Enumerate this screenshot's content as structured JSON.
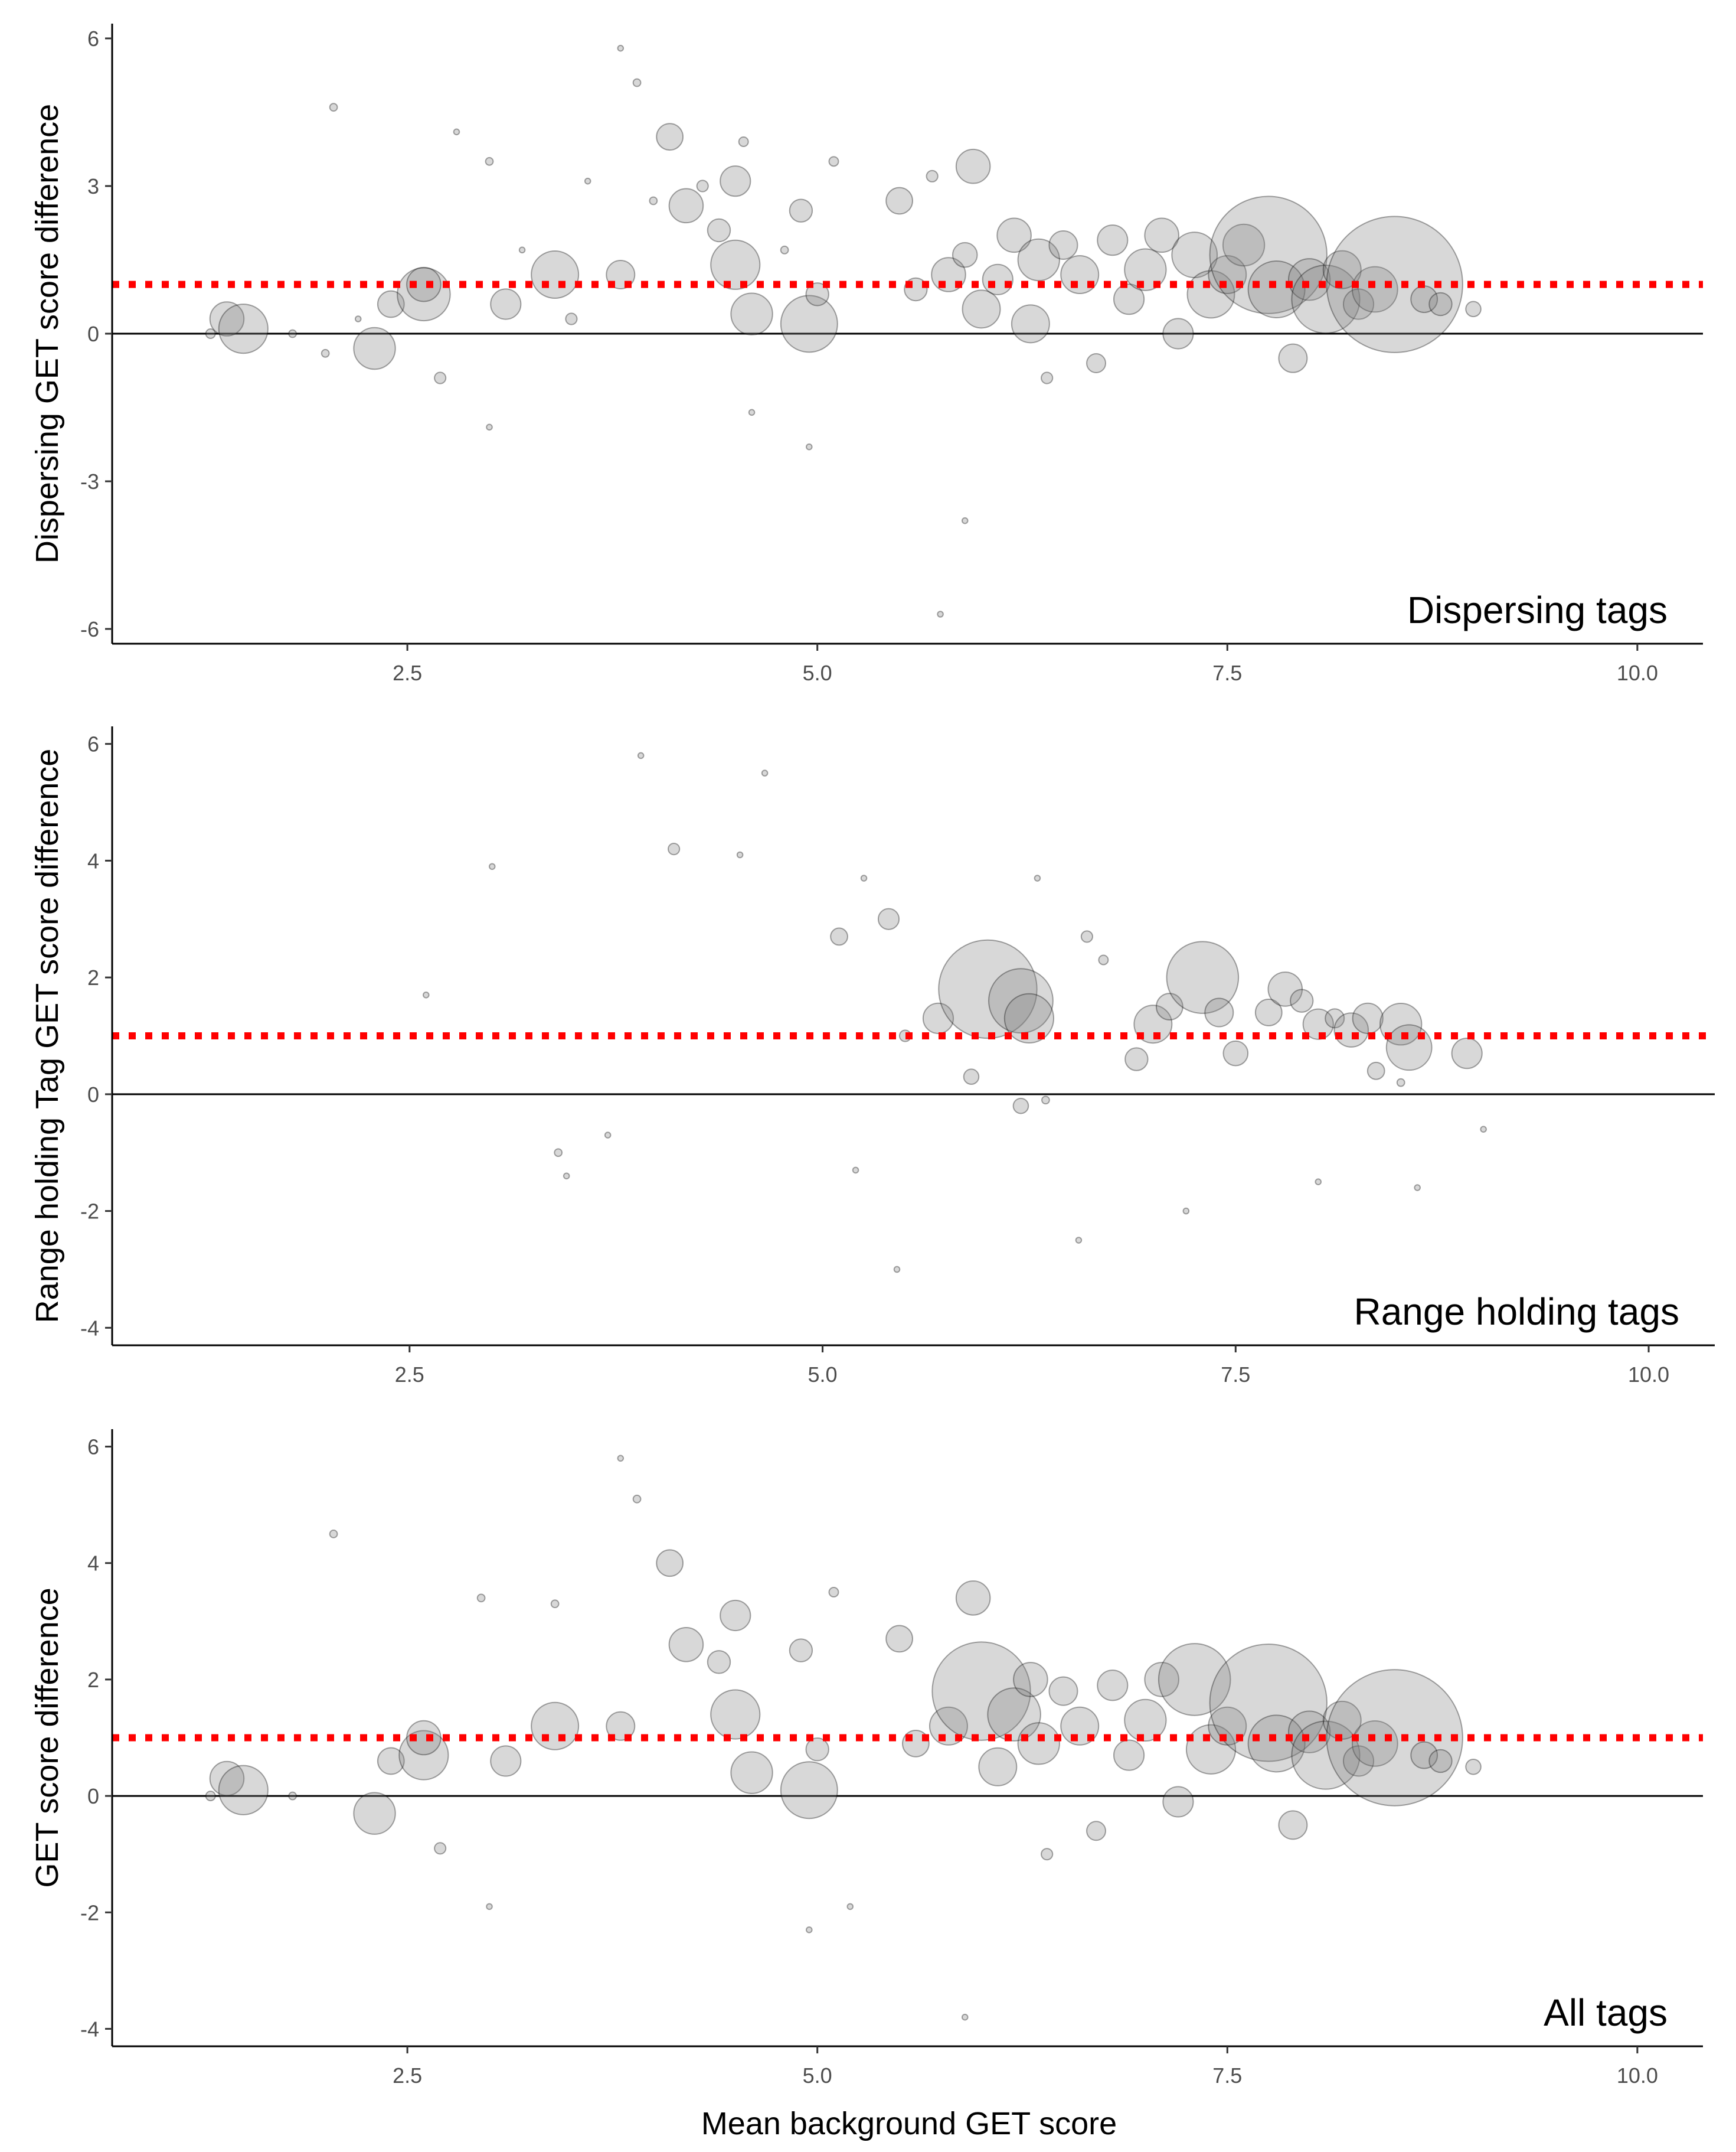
{
  "figure": {
    "x_axis_title": "Mean background GET score",
    "x_ticks": [
      "2.5",
      "5.0",
      "7.5",
      "10.0"
    ],
    "colors": {
      "bubble_fill": "#7f7f7f",
      "bubble_stroke": "#000000",
      "reference_line": "#ff0000",
      "zero_line": "#000000"
    }
  },
  "chart_data": [
    {
      "type": "scatter",
      "panel_label": "Dispersing tags",
      "ylabel": "Dispersing GET score difference",
      "xlabel": "",
      "xlim": [
        0.7,
        10.4
      ],
      "ylim": [
        -6.3,
        6.3
      ],
      "x_ticks": [
        2.5,
        5.0,
        7.5,
        10.0
      ],
      "y_ticks": [
        -6,
        -3,
        0,
        3,
        6
      ],
      "y_tick_labels": [
        "-6",
        "-3",
        "0",
        "3",
        "6"
      ],
      "reference_lines": [
        {
          "y": 1,
          "style": "dotted",
          "color": "#ff0000"
        },
        {
          "y": 0,
          "style": "solid",
          "color": "#000000"
        }
      ],
      "grid": false,
      "points": [
        {
          "x": 1.3,
          "y": 0.0,
          "s": 0.5
        },
        {
          "x": 1.4,
          "y": 0.3,
          "s": 1.8
        },
        {
          "x": 1.5,
          "y": 0.1,
          "s": 2.6
        },
        {
          "x": 1.8,
          "y": 0.0,
          "s": 0.4
        },
        {
          "x": 2.0,
          "y": -0.4,
          "s": 0.4
        },
        {
          "x": 2.05,
          "y": 4.6,
          "s": 0.4
        },
        {
          "x": 2.2,
          "y": 0.3,
          "s": 0.3
        },
        {
          "x": 2.3,
          "y": -0.3,
          "s": 2.2
        },
        {
          "x": 2.4,
          "y": 0.6,
          "s": 1.4
        },
        {
          "x": 2.6,
          "y": 0.8,
          "s": 2.8
        },
        {
          "x": 2.6,
          "y": 1.0,
          "s": 1.8
        },
        {
          "x": 2.7,
          "y": -0.9,
          "s": 0.6
        },
        {
          "x": 2.8,
          "y": 4.1,
          "s": 0.3
        },
        {
          "x": 3.0,
          "y": 3.5,
          "s": 0.4
        },
        {
          "x": 3.1,
          "y": 0.6,
          "s": 1.6
        },
        {
          "x": 3.2,
          "y": 1.7,
          "s": 0.3
        },
        {
          "x": 3.4,
          "y": 1.2,
          "s": 2.5
        },
        {
          "x": 3.5,
          "y": 0.3,
          "s": 0.6
        },
        {
          "x": 3.6,
          "y": 3.1,
          "s": 0.3
        },
        {
          "x": 3.8,
          "y": 1.2,
          "s": 1.5
        },
        {
          "x": 3.9,
          "y": 5.1,
          "s": 0.4
        },
        {
          "x": 4.0,
          "y": 2.7,
          "s": 0.4
        },
        {
          "x": 4.1,
          "y": 4.0,
          "s": 1.4
        },
        {
          "x": 4.2,
          "y": 2.6,
          "s": 1.8
        },
        {
          "x": 4.3,
          "y": 3.0,
          "s": 0.6
        },
        {
          "x": 4.4,
          "y": 2.1,
          "s": 1.2
        },
        {
          "x": 4.5,
          "y": 1.4,
          "s": 2.6
        },
        {
          "x": 4.5,
          "y": 3.1,
          "s": 1.6
        },
        {
          "x": 4.6,
          "y": 0.4,
          "s": 2.2
        },
        {
          "x": 4.55,
          "y": 3.9,
          "s": 0.5
        },
        {
          "x": 4.8,
          "y": 1.7,
          "s": 0.4
        },
        {
          "x": 4.9,
          "y": 2.5,
          "s": 1.2
        },
        {
          "x": 4.95,
          "y": 0.2,
          "s": 3.0
        },
        {
          "x": 5.0,
          "y": 0.8,
          "s": 1.2
        },
        {
          "x": 5.1,
          "y": 3.5,
          "s": 0.5
        },
        {
          "x": 5.5,
          "y": 2.7,
          "s": 1.4
        },
        {
          "x": 5.6,
          "y": 0.9,
          "s": 1.2
        },
        {
          "x": 5.7,
          "y": 3.2,
          "s": 0.6
        },
        {
          "x": 5.8,
          "y": 1.2,
          "s": 1.8
        },
        {
          "x": 5.9,
          "y": 1.6,
          "s": 1.3
        },
        {
          "x": 5.95,
          "y": 3.4,
          "s": 1.8
        },
        {
          "x": 6.0,
          "y": 0.5,
          "s": 2.0
        },
        {
          "x": 6.1,
          "y": 1.1,
          "s": 1.6
        },
        {
          "x": 6.2,
          "y": 2.0,
          "s": 1.8
        },
        {
          "x": 6.3,
          "y": 0.2,
          "s": 2.0
        },
        {
          "x": 6.35,
          "y": 1.5,
          "s": 2.2
        },
        {
          "x": 6.4,
          "y": -0.9,
          "s": 0.6
        },
        {
          "x": 6.5,
          "y": 1.8,
          "s": 1.5
        },
        {
          "x": 6.6,
          "y": 1.2,
          "s": 2.0
        },
        {
          "x": 6.7,
          "y": -0.6,
          "s": 1.0
        },
        {
          "x": 6.8,
          "y": 1.9,
          "s": 1.6
        },
        {
          "x": 6.9,
          "y": 0.7,
          "s": 1.6
        },
        {
          "x": 7.0,
          "y": 1.3,
          "s": 2.2
        },
        {
          "x": 7.1,
          "y": 2.0,
          "s": 1.8
        },
        {
          "x": 7.2,
          "y": 0.0,
          "s": 1.6
        },
        {
          "x": 7.3,
          "y": 1.6,
          "s": 2.4
        },
        {
          "x": 7.4,
          "y": 0.8,
          "s": 2.5
        },
        {
          "x": 7.5,
          "y": 1.2,
          "s": 2.0
        },
        {
          "x": 7.6,
          "y": 1.8,
          "s": 2.2
        },
        {
          "x": 7.75,
          "y": 1.6,
          "s": 6.2
        },
        {
          "x": 7.8,
          "y": 0.9,
          "s": 3.0
        },
        {
          "x": 7.9,
          "y": -0.5,
          "s": 1.5
        },
        {
          "x": 8.0,
          "y": 1.1,
          "s": 2.2
        },
        {
          "x": 8.1,
          "y": 0.7,
          "s": 3.6
        },
        {
          "x": 8.2,
          "y": 1.3,
          "s": 2.0
        },
        {
          "x": 8.3,
          "y": 0.6,
          "s": 1.6
        },
        {
          "x": 8.4,
          "y": 0.9,
          "s": 2.4
        },
        {
          "x": 8.52,
          "y": 1.0,
          "s": 7.2
        },
        {
          "x": 8.7,
          "y": 0.7,
          "s": 1.4
        },
        {
          "x": 8.8,
          "y": 0.6,
          "s": 1.2
        },
        {
          "x": 9.0,
          "y": 0.5,
          "s": 0.8
        },
        {
          "x": 3.0,
          "y": -1.9,
          "s": 0.3
        },
        {
          "x": 4.6,
          "y": -1.6,
          "s": 0.3
        },
        {
          "x": 4.95,
          "y": -2.3,
          "s": 0.3
        },
        {
          "x": 5.9,
          "y": -3.8,
          "s": 0.3
        },
        {
          "x": 5.75,
          "y": -5.7,
          "s": 0.3
        },
        {
          "x": 3.8,
          "y": 5.8,
          "s": 0.3
        }
      ]
    },
    {
      "type": "scatter",
      "panel_label": "Range holding  tags",
      "ylabel": "Range holding Tag GET score difference",
      "xlabel": "",
      "xlim": [
        0.7,
        10.4
      ],
      "ylim": [
        -4.3,
        6.3
      ],
      "x_ticks": [
        2.5,
        5.0,
        7.5,
        10.0
      ],
      "y_ticks": [
        -4,
        -2,
        0,
        2,
        4,
        6
      ],
      "y_tick_labels": [
        "-4",
        "-2",
        "0",
        "2",
        "4",
        "6"
      ],
      "reference_lines": [
        {
          "y": 1,
          "style": "dotted",
          "color": "#ff0000"
        },
        {
          "y": 0,
          "style": "solid",
          "color": "#000000"
        }
      ],
      "grid": false,
      "points": [
        {
          "x": 2.6,
          "y": 1.7,
          "s": 0.3
        },
        {
          "x": 3.0,
          "y": 3.9,
          "s": 0.3
        },
        {
          "x": 3.4,
          "y": -1.0,
          "s": 0.4
        },
        {
          "x": 3.45,
          "y": -1.4,
          "s": 0.3
        },
        {
          "x": 3.7,
          "y": -0.7,
          "s": 0.3
        },
        {
          "x": 3.9,
          "y": 5.8,
          "s": 0.3
        },
        {
          "x": 4.1,
          "y": 4.2,
          "s": 0.6
        },
        {
          "x": 4.5,
          "y": 4.1,
          "s": 0.3
        },
        {
          "x": 4.65,
          "y": 5.5,
          "s": 0.3
        },
        {
          "x": 5.1,
          "y": 2.7,
          "s": 0.9
        },
        {
          "x": 5.2,
          "y": -1.3,
          "s": 0.3
        },
        {
          "x": 5.4,
          "y": 3.0,
          "s": 1.1
        },
        {
          "x": 5.45,
          "y": -3.0,
          "s": 0.3
        },
        {
          "x": 5.5,
          "y": 1.0,
          "s": 0.6
        },
        {
          "x": 5.7,
          "y": 1.3,
          "s": 1.6
        },
        {
          "x": 5.9,
          "y": 0.3,
          "s": 0.8
        },
        {
          "x": 6.0,
          "y": 1.8,
          "s": 5.2
        },
        {
          "x": 6.2,
          "y": 1.6,
          "s": 3.4
        },
        {
          "x": 6.25,
          "y": 1.3,
          "s": 2.6
        },
        {
          "x": 6.2,
          "y": -0.2,
          "s": 0.8
        },
        {
          "x": 6.35,
          "y": -0.1,
          "s": 0.4
        },
        {
          "x": 6.55,
          "y": -2.5,
          "s": 0.3
        },
        {
          "x": 6.6,
          "y": 2.7,
          "s": 0.6
        },
        {
          "x": 6.7,
          "y": 2.3,
          "s": 0.5
        },
        {
          "x": 6.9,
          "y": 0.6,
          "s": 1.2
        },
        {
          "x": 7.0,
          "y": 1.2,
          "s": 2.0
        },
        {
          "x": 7.1,
          "y": 1.5,
          "s": 1.4
        },
        {
          "x": 7.2,
          "y": -2.0,
          "s": 0.3
        },
        {
          "x": 7.3,
          "y": 2.0,
          "s": 3.8
        },
        {
          "x": 7.4,
          "y": 1.4,
          "s": 1.5
        },
        {
          "x": 7.5,
          "y": 0.7,
          "s": 1.3
        },
        {
          "x": 7.7,
          "y": 1.4,
          "s": 1.4
        },
        {
          "x": 7.8,
          "y": 1.8,
          "s": 1.8
        },
        {
          "x": 7.9,
          "y": 1.6,
          "s": 1.2
        },
        {
          "x": 8.0,
          "y": 1.2,
          "s": 1.6
        },
        {
          "x": 8.1,
          "y": 1.3,
          "s": 1.0
        },
        {
          "x": 8.2,
          "y": 1.1,
          "s": 1.8
        },
        {
          "x": 8.3,
          "y": 1.3,
          "s": 1.6
        },
        {
          "x": 8.35,
          "y": 0.4,
          "s": 0.9
        },
        {
          "x": 8.5,
          "y": 1.2,
          "s": 2.2
        },
        {
          "x": 8.55,
          "y": 0.8,
          "s": 2.4
        },
        {
          "x": 8.9,
          "y": 0.7,
          "s": 1.6
        },
        {
          "x": 8.5,
          "y": 0.2,
          "s": 0.4
        },
        {
          "x": 8.0,
          "y": -1.5,
          "s": 0.3
        },
        {
          "x": 8.6,
          "y": -1.6,
          "s": 0.3
        },
        {
          "x": 9.0,
          "y": -0.6,
          "s": 0.3
        },
        {
          "x": 6.3,
          "y": 3.7,
          "s": 0.3
        },
        {
          "x": 5.25,
          "y": 3.7,
          "s": 0.3
        }
      ]
    },
    {
      "type": "scatter",
      "panel_label": "All tags",
      "ylabel": "GET score difference",
      "xlabel": "Mean background GET score",
      "xlim": [
        0.7,
        10.4
      ],
      "ylim": [
        -4.3,
        6.3
      ],
      "x_ticks": [
        2.5,
        5.0,
        7.5,
        10.0
      ],
      "y_ticks": [
        -4,
        -2,
        0,
        2,
        4,
        6
      ],
      "y_tick_labels": [
        "-4",
        "-2",
        "0",
        "2",
        "4",
        "6"
      ],
      "reference_lines": [
        {
          "y": 1,
          "style": "dotted",
          "color": "#ff0000"
        },
        {
          "y": 0,
          "style": "solid",
          "color": "#000000"
        }
      ],
      "grid": false,
      "points": [
        {
          "x": 1.3,
          "y": 0.0,
          "s": 0.5
        },
        {
          "x": 1.4,
          "y": 0.3,
          "s": 1.8
        },
        {
          "x": 1.5,
          "y": 0.1,
          "s": 2.6
        },
        {
          "x": 1.8,
          "y": 0.0,
          "s": 0.4
        },
        {
          "x": 2.05,
          "y": 4.5,
          "s": 0.4
        },
        {
          "x": 2.3,
          "y": -0.3,
          "s": 2.2
        },
        {
          "x": 2.4,
          "y": 0.6,
          "s": 1.4
        },
        {
          "x": 2.6,
          "y": 0.7,
          "s": 2.6
        },
        {
          "x": 2.6,
          "y": 1.0,
          "s": 1.8
        },
        {
          "x": 2.7,
          "y": -0.9,
          "s": 0.6
        },
        {
          "x": 2.95,
          "y": 3.4,
          "s": 0.4
        },
        {
          "x": 3.1,
          "y": 0.6,
          "s": 1.6
        },
        {
          "x": 3.4,
          "y": 1.2,
          "s": 2.5
        },
        {
          "x": 3.4,
          "y": 3.3,
          "s": 0.4
        },
        {
          "x": 3.8,
          "y": 1.2,
          "s": 1.5
        },
        {
          "x": 3.9,
          "y": 5.1,
          "s": 0.4
        },
        {
          "x": 4.1,
          "y": 4.0,
          "s": 1.4
        },
        {
          "x": 4.2,
          "y": 2.6,
          "s": 1.8
        },
        {
          "x": 4.4,
          "y": 2.3,
          "s": 1.2
        },
        {
          "x": 4.5,
          "y": 1.4,
          "s": 2.6
        },
        {
          "x": 4.5,
          "y": 3.1,
          "s": 1.6
        },
        {
          "x": 4.6,
          "y": 0.4,
          "s": 2.2
        },
        {
          "x": 4.9,
          "y": 2.5,
          "s": 1.2
        },
        {
          "x": 4.95,
          "y": 0.1,
          "s": 3.0
        },
        {
          "x": 5.0,
          "y": 0.8,
          "s": 1.2
        },
        {
          "x": 5.1,
          "y": 3.5,
          "s": 0.5
        },
        {
          "x": 5.5,
          "y": 2.7,
          "s": 1.4
        },
        {
          "x": 5.6,
          "y": 0.9,
          "s": 1.4
        },
        {
          "x": 5.8,
          "y": 1.2,
          "s": 2.0
        },
        {
          "x": 5.95,
          "y": 3.4,
          "s": 1.8
        },
        {
          "x": 6.0,
          "y": 1.8,
          "s": 5.2
        },
        {
          "x": 6.1,
          "y": 0.5,
          "s": 2.0
        },
        {
          "x": 6.2,
          "y": 1.4,
          "s": 2.8
        },
        {
          "x": 6.3,
          "y": 2.0,
          "s": 1.8
        },
        {
          "x": 6.35,
          "y": 0.9,
          "s": 2.2
        },
        {
          "x": 6.4,
          "y": -1.0,
          "s": 0.6
        },
        {
          "x": 6.5,
          "y": 1.8,
          "s": 1.5
        },
        {
          "x": 6.6,
          "y": 1.2,
          "s": 2.0
        },
        {
          "x": 6.7,
          "y": -0.6,
          "s": 1.0
        },
        {
          "x": 6.8,
          "y": 1.9,
          "s": 1.6
        },
        {
          "x": 6.9,
          "y": 0.7,
          "s": 1.6
        },
        {
          "x": 7.0,
          "y": 1.3,
          "s": 2.2
        },
        {
          "x": 7.1,
          "y": 2.0,
          "s": 1.8
        },
        {
          "x": 7.2,
          "y": -0.1,
          "s": 1.6
        },
        {
          "x": 7.3,
          "y": 2.0,
          "s": 3.8
        },
        {
          "x": 7.4,
          "y": 0.8,
          "s": 2.6
        },
        {
          "x": 7.5,
          "y": 1.2,
          "s": 2.0
        },
        {
          "x": 7.75,
          "y": 1.6,
          "s": 6.2
        },
        {
          "x": 7.8,
          "y": 0.9,
          "s": 3.0
        },
        {
          "x": 7.9,
          "y": -0.5,
          "s": 1.5
        },
        {
          "x": 8.0,
          "y": 1.1,
          "s": 2.2
        },
        {
          "x": 8.1,
          "y": 0.7,
          "s": 3.6
        },
        {
          "x": 8.2,
          "y": 1.3,
          "s": 2.0
        },
        {
          "x": 8.3,
          "y": 0.6,
          "s": 1.6
        },
        {
          "x": 8.4,
          "y": 0.9,
          "s": 2.4
        },
        {
          "x": 8.52,
          "y": 1.0,
          "s": 7.2
        },
        {
          "x": 8.7,
          "y": 0.7,
          "s": 1.4
        },
        {
          "x": 8.8,
          "y": 0.6,
          "s": 1.2
        },
        {
          "x": 9.0,
          "y": 0.5,
          "s": 0.8
        },
        {
          "x": 3.0,
          "y": -1.9,
          "s": 0.3
        },
        {
          "x": 4.95,
          "y": -2.3,
          "s": 0.3
        },
        {
          "x": 5.9,
          "y": -3.8,
          "s": 0.3
        },
        {
          "x": 3.8,
          "y": 5.8,
          "s": 0.3
        },
        {
          "x": 5.2,
          "y": -1.9,
          "s": 0.3
        }
      ]
    }
  ]
}
